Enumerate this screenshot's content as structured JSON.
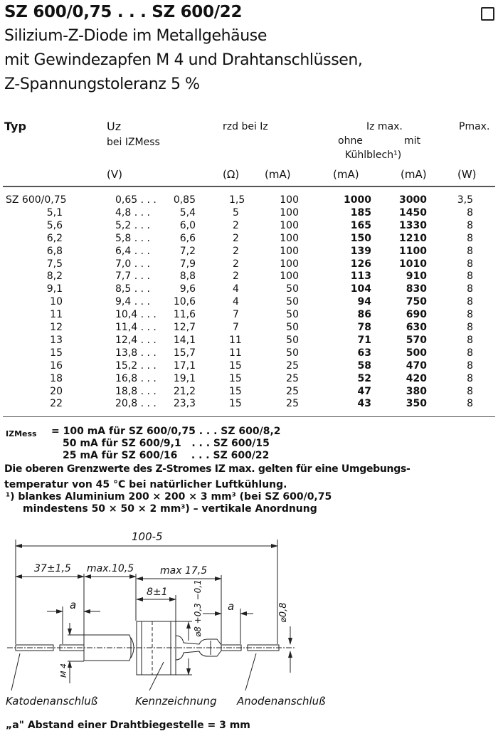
{
  "header": {
    "title": "SZ 600/0,75 . . . SZ 600/22",
    "subtitle_lines": [
      "Silizium-Z-Diode im Metallgehäuse",
      "mit Gewindezapfen M 4 und Drahtanschlüssen,",
      "Z-Spannungstoleranz 5 %"
    ]
  },
  "table": {
    "headers": {
      "typ": "Typ",
      "uz": "Uz",
      "uz_sub": "bei IZMess",
      "rzd": "rzd bei Iz",
      "iz_max": "Iz max.",
      "ohne": "ohne",
      "mit": "mit",
      "kuehlblech": "Kühlblech¹)",
      "pmax": "Pmax."
    },
    "units": [
      "(V)",
      "(Ω)",
      "(mA)",
      "(mA)",
      "(mA)",
      "(W)"
    ],
    "rows": [
      {
        "typ": "SZ 600/0,75",
        "umin": "0,65 . . .",
        "umax": "0,85",
        "rzd": "1,5",
        "iz": "100",
        "ohne": "1000",
        "mit": "3000",
        "p": "3,5"
      },
      {
        "typ": "5,1",
        "umin": "4,8 . . .",
        "umax": "5,4",
        "rzd": "5",
        "iz": "100",
        "ohne": "185",
        "mit": "1450",
        "p": "8"
      },
      {
        "typ": "5,6",
        "umin": "5,2 . . .",
        "umax": "6,0",
        "rzd": "2",
        "iz": "100",
        "ohne": "165",
        "mit": "1330",
        "p": "8"
      },
      {
        "typ": "6,2",
        "umin": "5,8 . . .",
        "umax": "6,6",
        "rzd": "2",
        "iz": "100",
        "ohne": "150",
        "mit": "1210",
        "p": "8"
      },
      {
        "typ": "6,8",
        "umin": "6,4 . . .",
        "umax": "7,2",
        "rzd": "2",
        "iz": "100",
        "ohne": "139",
        "mit": "1100",
        "p": "8"
      },
      {
        "typ": "7,5",
        "umin": "7,0 . . .",
        "umax": "7,9",
        "rzd": "2",
        "iz": "100",
        "ohne": "126",
        "mit": "1010",
        "p": "8"
      },
      {
        "typ": "8,2",
        "umin": "7,7 . . .",
        "umax": "8,8",
        "rzd": "2",
        "iz": "100",
        "ohne": "113",
        "mit": "910",
        "p": "8"
      },
      {
        "typ": "9,1",
        "umin": "8,5 . . .",
        "umax": "9,6",
        "rzd": "4",
        "iz": "50",
        "ohne": "104",
        "mit": "830",
        "p": "8"
      },
      {
        "typ": "10",
        "umin": "9,4 . . .",
        "umax": "10,6",
        "rzd": "4",
        "iz": "50",
        "ohne": "94",
        "mit": "750",
        "p": "8"
      },
      {
        "typ": "11",
        "umin": "10,4 . . .",
        "umax": "11,6",
        "rzd": "7",
        "iz": "50",
        "ohne": "86",
        "mit": "690",
        "p": "8"
      },
      {
        "typ": "12",
        "umin": "11,4 . . .",
        "umax": "12,7",
        "rzd": "7",
        "iz": "50",
        "ohne": "78",
        "mit": "630",
        "p": "8"
      },
      {
        "typ": "13",
        "umin": "12,4 . . .",
        "umax": "14,1",
        "rzd": "11",
        "iz": "50",
        "ohne": "71",
        "mit": "570",
        "p": "8"
      },
      {
        "typ": "15",
        "umin": "13,8 . . .",
        "umax": "15,7",
        "rzd": "11",
        "iz": "50",
        "ohne": "63",
        "mit": "500",
        "p": "8"
      },
      {
        "typ": "16",
        "umin": "15,2 . . .",
        "umax": "17,1",
        "rzd": "15",
        "iz": "25",
        "ohne": "58",
        "mit": "470",
        "p": "8"
      },
      {
        "typ": "18",
        "umin": "16,8 . . .",
        "umax": "19,1",
        "rzd": "15",
        "iz": "25",
        "ohne": "52",
        "mit": "420",
        "p": "8"
      },
      {
        "typ": "20",
        "umin": "18,8 . . .",
        "umax": "21,2",
        "rzd": "15",
        "iz": "25",
        "ohne": "47",
        "mit": "380",
        "p": "8"
      },
      {
        "typ": "22",
        "umin": "20,8 . . .",
        "umax": "23,3",
        "rzd": "15",
        "iz": "25",
        "ohne": "43",
        "mit": "350",
        "p": "8"
      }
    ]
  },
  "notes": {
    "izmess_label": "IZMess",
    "izmess_lines": [
      "= 100 mA für SZ 600/0,75 . . . SZ 600/8,2",
      "50 mA für SZ 600/9,1   . . . SZ 600/15",
      "25 mA für SZ 600/16    . . . SZ 600/22"
    ],
    "limit_lines": [
      "Die oberen Grenzwerte des Z-Stromes IZ max. gelten für eine Umgebungs-",
      "temperatur von 45 °C bei natürlicher Luftkühlung."
    ],
    "footnote_lines": [
      "¹) blankes Aluminium 200 × 200 × 3 mm³ (bei SZ 600/0,75",
      "mindestens 50 × 50 × 2 mm³) – vertikale Anordnung"
    ]
  },
  "drawing": {
    "dim_total": "100-5",
    "dim_lead": "37±1,5",
    "dim_thread": "max.10,5",
    "dim_body": "max 17,5",
    "dim_case": "8±1",
    "dim_a": "a",
    "dim_diameter": "⌀8 +0,3 −0,1",
    "dim_wire": "⌀0,8",
    "thread": "M 4",
    "label_cathode": "Katodenanschluß",
    "label_marking": "Kennzeichnung",
    "label_anode": "Anodenanschluß",
    "caption": "„a\" Abstand einer Drahtbiegestelle = 3 mm"
  }
}
